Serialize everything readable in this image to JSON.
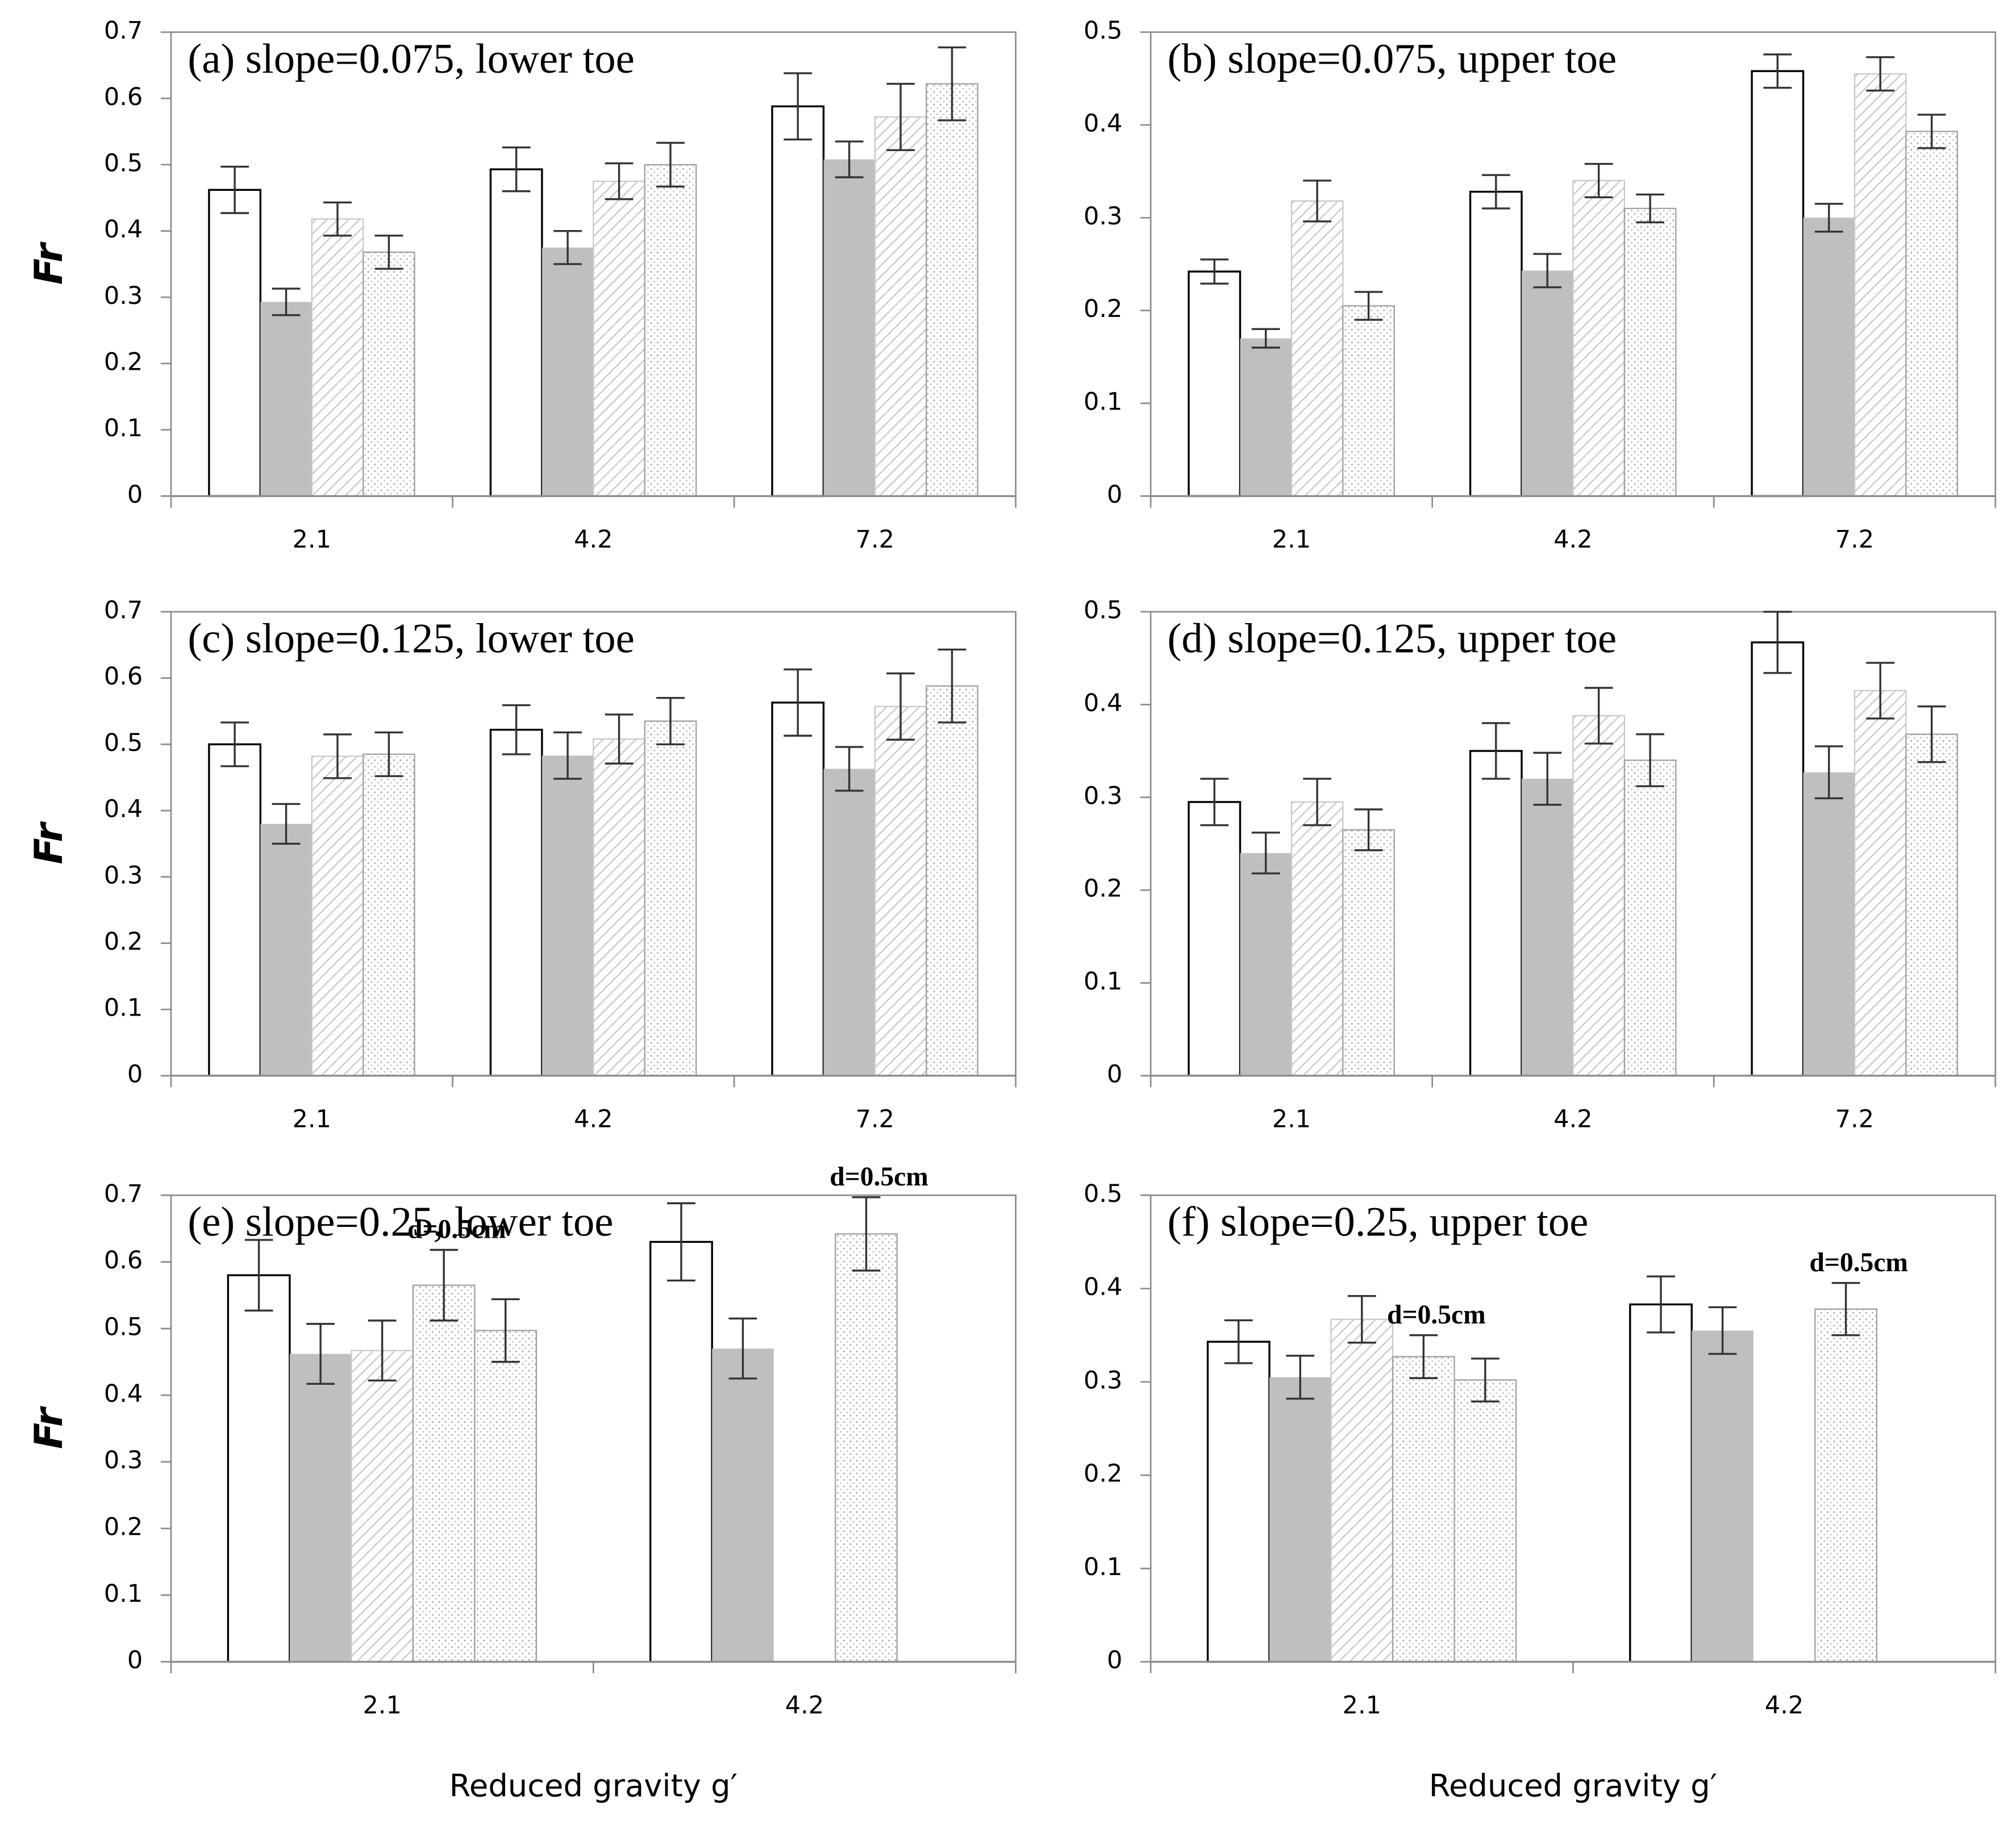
{
  "chart_data": [
    {
      "type": "bar",
      "title": "(a) slope=0.075, lower toe",
      "ylabel": "Fr",
      "categories": [
        "2.1",
        "4.2",
        "7.2"
      ],
      "ylim": [
        0,
        0.7
      ],
      "yticks": [
        0,
        0.1,
        0.2,
        0.3,
        0.4,
        0.5,
        0.6,
        0.7
      ],
      "series": [
        {
          "pattern": "outline",
          "values": [
            0.462,
            0.493,
            0.588
          ],
          "errors": [
            0.035,
            0.033,
            0.05
          ]
        },
        {
          "pattern": "solid",
          "color": "#bfbfbf",
          "values": [
            0.293,
            0.375,
            0.508
          ],
          "errors": [
            0.02,
            0.025,
            0.027
          ]
        },
        {
          "pattern": "hatch",
          "values": [
            0.418,
            0.475,
            0.572
          ],
          "errors": [
            0.025,
            0.027,
            0.05
          ]
        },
        {
          "pattern": "dots",
          "values": [
            0.368,
            0.5,
            0.622
          ],
          "errors": [
            0.025,
            0.033,
            0.055
          ]
        }
      ]
    },
    {
      "type": "bar",
      "title": "(b) slope=0.075, upper toe",
      "categories": [
        "2.1",
        "4.2",
        "7.2"
      ],
      "ylim": [
        0,
        0.5
      ],
      "yticks": [
        0,
        0.1,
        0.2,
        0.3,
        0.4,
        0.5
      ],
      "series": [
        {
          "pattern": "outline",
          "values": [
            0.242,
            0.328,
            0.458
          ],
          "errors": [
            0.013,
            0.018,
            0.018
          ]
        },
        {
          "pattern": "solid",
          "color": "#bfbfbf",
          "values": [
            0.17,
            0.243,
            0.3
          ],
          "errors": [
            0.01,
            0.018,
            0.015
          ]
        },
        {
          "pattern": "hatch",
          "values": [
            0.318,
            0.34,
            0.455
          ],
          "errors": [
            0.022,
            0.018,
            0.018
          ]
        },
        {
          "pattern": "dots",
          "values": [
            0.205,
            0.31,
            0.393
          ],
          "errors": [
            0.015,
            0.015,
            0.018
          ]
        }
      ]
    },
    {
      "type": "bar",
      "title": "(c) slope=0.125, lower toe",
      "ylabel": "Fr",
      "categories": [
        "2.1",
        "4.2",
        "7.2"
      ],
      "ylim": [
        0,
        0.7
      ],
      "yticks": [
        0,
        0.1,
        0.2,
        0.3,
        0.4,
        0.5,
        0.6,
        0.7
      ],
      "series": [
        {
          "pattern": "outline",
          "values": [
            0.5,
            0.522,
            0.563
          ],
          "errors": [
            0.033,
            0.037,
            0.05
          ]
        },
        {
          "pattern": "solid",
          "color": "#bfbfbf",
          "values": [
            0.38,
            0.483,
            0.463
          ],
          "errors": [
            0.03,
            0.035,
            0.033
          ]
        },
        {
          "pattern": "hatch",
          "values": [
            0.482,
            0.508,
            0.557
          ],
          "errors": [
            0.033,
            0.037,
            0.05
          ]
        },
        {
          "pattern": "dots",
          "values": [
            0.485,
            0.535,
            0.588
          ],
          "errors": [
            0.033,
            0.035,
            0.055
          ]
        }
      ]
    },
    {
      "type": "bar",
      "title": "(d) slope=0.125, upper toe",
      "categories": [
        "2.1",
        "4.2",
        "7.2"
      ],
      "ylim": [
        0,
        0.5
      ],
      "yticks": [
        0,
        0.1,
        0.2,
        0.3,
        0.4,
        0.5
      ],
      "series": [
        {
          "pattern": "outline",
          "values": [
            0.295,
            0.35,
            0.467
          ],
          "errors": [
            0.025,
            0.03,
            0.033
          ]
        },
        {
          "pattern": "solid",
          "color": "#bfbfbf",
          "values": [
            0.24,
            0.32,
            0.327
          ],
          "errors": [
            0.022,
            0.028,
            0.028
          ]
        },
        {
          "pattern": "hatch",
          "values": [
            0.295,
            0.388,
            0.415
          ],
          "errors": [
            0.025,
            0.03,
            0.03
          ]
        },
        {
          "pattern": "dots",
          "values": [
            0.265,
            0.34,
            0.368
          ],
          "errors": [
            0.022,
            0.028,
            0.03
          ]
        }
      ]
    },
    {
      "type": "bar",
      "title": "(e) slope=0.25, lower toe",
      "ylabel": "Fr",
      "xlabel": "Reduced gravity g′",
      "categories": [
        "2.1",
        "4.2"
      ],
      "ylim": [
        0,
        0.7
      ],
      "yticks": [
        0,
        0.1,
        0.2,
        0.3,
        0.4,
        0.5,
        0.6,
        0.7
      ],
      "series": [
        {
          "pattern": "outline",
          "values": [
            0.58,
            0.63
          ],
          "errors": [
            0.053,
            0.058
          ]
        },
        {
          "pattern": "solid",
          "color": "#bfbfbf",
          "values": [
            0.462,
            0.47
          ],
          "errors": [
            0.045,
            0.045
          ]
        },
        {
          "pattern": "hatch",
          "values": [
            0.467,
            null
          ],
          "errors": [
            0.045,
            null
          ]
        },
        {
          "name": "d=0.5cm",
          "pattern": "dots",
          "values": [
            0.565,
            0.642
          ],
          "errors": [
            0.053,
            0.055
          ]
        },
        {
          "pattern": "dots",
          "values": [
            0.497,
            null
          ],
          "errors": [
            0.047,
            null
          ]
        }
      ]
    },
    {
      "type": "bar",
      "title": "(f) slope=0.25, upper toe",
      "xlabel": "Reduced gravity g′",
      "categories": [
        "2.1",
        "4.2"
      ],
      "ylim": [
        0,
        0.5
      ],
      "yticks": [
        0,
        0.1,
        0.2,
        0.3,
        0.4,
        0.5
      ],
      "series": [
        {
          "pattern": "outline",
          "values": [
            0.343,
            0.383
          ],
          "errors": [
            0.023,
            0.03
          ]
        },
        {
          "pattern": "solid",
          "color": "#bfbfbf",
          "values": [
            0.305,
            0.355
          ],
          "errors": [
            0.023,
            0.025
          ]
        },
        {
          "pattern": "hatch",
          "values": [
            0.367,
            null
          ],
          "errors": [
            0.025,
            null
          ]
        },
        {
          "name": "d=0.5cm",
          "pattern": "dots",
          "values": [
            0.327,
            0.378
          ],
          "errors": [
            0.023,
            0.028
          ]
        },
        {
          "pattern": "dots",
          "values": [
            0.302,
            null
          ],
          "errors": [
            0.023,
            null
          ]
        }
      ]
    }
  ]
}
